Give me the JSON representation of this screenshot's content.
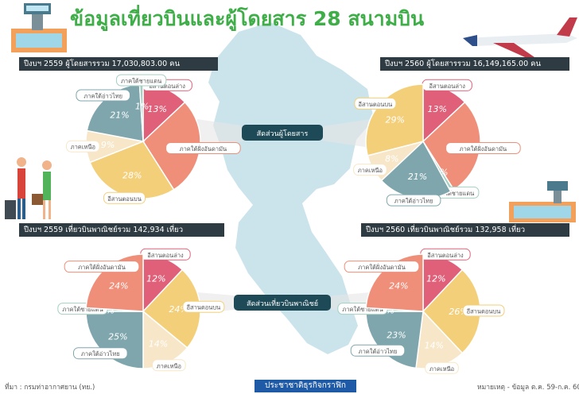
{
  "header": {
    "title": "ข้อมูลเที่ยวบินและผู้โดยสาร 28 สนามบิน"
  },
  "bars": {
    "p2559": "ปีงบฯ 2559 ผู้โดยสารรวม 17,030,803.00 คน",
    "p2560": "ปีงบฯ 2560 ผู้โดยสารรวม 16,149,165.00 คน",
    "f2559": "ปีงบฯ 2559 เที่ยวบินพาณิชย์รวม 142,934 เที่ยว",
    "f2560": "ปีงบฯ 2560 เที่ยวบินพาณิชย์รวม 132,958 เที่ยว"
  },
  "center_labels": {
    "passengers": "สัดส่วนผู้โดยสาร",
    "flights": "สัดส่วนเที่ยวบินพาณิชย์"
  },
  "footer": {
    "source": "ที่มา : กรมท่าอากาศยาน (ทย.)",
    "brand": "ประชาชาติธุรกิจกราฟิก",
    "note": "หมายเหตุ - ข้อมูล ต.ค. 59-ก.ค. 60"
  },
  "colors": {
    "อีสานตอนล่าง": "#e0607a",
    "ภาคใต้ฝั่งอันดามัน": "#ef8f7a",
    "อีสานตอนบน": "#f3cf7a",
    "ภาคเหนือ": "#f7e7c8",
    "ภาคใต้อ่าวไทย": "#7fa6ad",
    "ภาคใต้ชายแดน": "#a3d0c3"
  },
  "chart_data": [
    {
      "type": "pie",
      "series": [
        {
          "label": "อีสานตอนล่าง",
          "value": 13
        },
        {
          "label": "ภาคใต้ฝั่งอันดามัน",
          "value": 28
        },
        {
          "label": "อีสานตอนบน",
          "value": 28
        },
        {
          "label": "ภาคเหนือ",
          "value": 9
        },
        {
          "label": "ภาคใต้อ่าวไทย",
          "value": 21
        },
        {
          "label": "ภาคใต้ชายแดน",
          "value": 1
        }
      ]
    },
    {
      "type": "pie",
      "series": [
        {
          "label": "อีสานตอนล่าง",
          "value": 13
        },
        {
          "label": "ภาคใต้ฝั่งอันดามัน",
          "value": 28
        },
        {
          "label": "ภาคใต้ชายแดน",
          "value": 1
        },
        {
          "label": "ภาคใต้อ่าวไทย",
          "value": 21
        },
        {
          "label": "ภาคเหนือ",
          "value": 8
        },
        {
          "label": "อีสานตอนบน",
          "value": 29
        }
      ]
    },
    {
      "type": "pie",
      "series": [
        {
          "label": "อีสานตอนล่าง",
          "value": 12
        },
        {
          "label": "อีสานตอนบน",
          "value": 24
        },
        {
          "label": "ภาคเหนือ",
          "value": 14
        },
        {
          "label": "ภาคใต้อ่าวไทย",
          "value": 25
        },
        {
          "label": "ภาคใต้ชายแดน",
          "value": 1
        },
        {
          "label": "ภาคใต้ฝั่งอันดามัน",
          "value": 24
        }
      ]
    },
    {
      "type": "pie",
      "series": [
        {
          "label": "อีสานตอนล่าง",
          "value": 12
        },
        {
          "label": "อีสานตอนบน",
          "value": 26
        },
        {
          "label": "ภาคเหนือ",
          "value": 14
        },
        {
          "label": "ภาคใต้อ่าวไทย",
          "value": 23
        },
        {
          "label": "ภาคใต้ชายแดน",
          "value": 1
        },
        {
          "label": "ภาคใต้ฝั่งอันดามัน",
          "value": 24
        }
      ]
    }
  ]
}
